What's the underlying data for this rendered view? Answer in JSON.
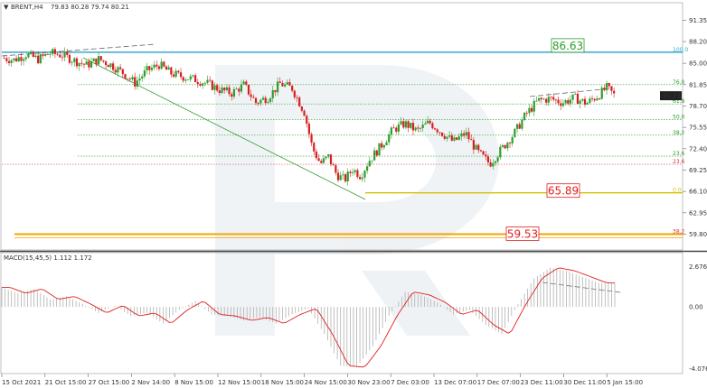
{
  "header": {
    "title": "BRENT,H4",
    "ohlc": "79.83 80.28 79.74 80.21"
  },
  "macd_header": "MACD(15,45,5) 1.112 1.172",
  "colors": {
    "bull": "#2e9e2e",
    "bear": "#d62020",
    "fib": "#2e9e2e",
    "resistance": "#36a9c9",
    "support_yellow": "#d4c200",
    "support_orange": "#f5a300",
    "label_red": "#e02020",
    "label_green": "#2e9e2e",
    "macd_signal": "#e02020",
    "macd_hist": "#b0b0b0"
  },
  "chart_data": {
    "type": "candlestick",
    "price_axis": {
      "ylim": [
        57.6,
        93.8
      ],
      "ticks": [
        "91.35",
        "88.20",
        "85.00",
        "81.85",
        "78.70",
        "75.55",
        "72.40",
        "69.25",
        "66.10",
        "62.95",
        "59.80"
      ]
    },
    "current_price": "80.21",
    "x_ticks": [
      "15 Oct 2021",
      "21 Oct 15:00",
      "27 Oct 15:00",
      "2 Nov 14:00",
      "8 Nov 15:00",
      "12 Nov 15:00",
      "18 Nov 15:00",
      "24 Nov 15:00",
      "30 Nov 23:00",
      "7 Dec 03:00",
      "13 Dec 07:00",
      "17 Dec 07:00",
      "23 Dec 11:00",
      "30 Dec 11:00",
      "5 Jan 15:00"
    ],
    "fib_levels": [
      {
        "label": "100.0",
        "price": 86.63
      },
      {
        "label": "76.0",
        "price": 81.85
      },
      {
        "label": "61.8",
        "price": 79.0
      },
      {
        "label": "50.0",
        "price": 76.7
      },
      {
        "label": "38.2",
        "price": 74.4
      },
      {
        "label": "23.6",
        "price": 71.3
      },
      {
        "label": "23.6",
        "price": 70.1
      },
      {
        "label": "0.0",
        "price": 65.89
      },
      {
        "label": "38.2",
        "price": 59.8
      }
    ],
    "key_levels": [
      {
        "label": "86.63",
        "price": 86.63
      },
      {
        "label": "65.89",
        "price": 65.89
      },
      {
        "label": "59.53",
        "price": 59.53
      }
    ],
    "price_path": [
      {
        "t": 0,
        "p": 85.8
      },
      {
        "t": 3,
        "p": 85.5
      },
      {
        "t": 6,
        "p": 86.3
      },
      {
        "t": 9,
        "p": 85.6
      },
      {
        "t": 12,
        "p": 86.5
      },
      {
        "t": 15,
        "p": 86.2
      },
      {
        "t": 18,
        "p": 85.4
      },
      {
        "t": 21,
        "p": 84.7
      },
      {
        "t": 24,
        "p": 85.6
      },
      {
        "t": 27,
        "p": 84.8
      },
      {
        "t": 30,
        "p": 83.6
      },
      {
        "t": 33,
        "p": 82.1
      },
      {
        "t": 36,
        "p": 83.9
      },
      {
        "t": 39,
        "p": 84.8
      },
      {
        "t": 42,
        "p": 83.5
      },
      {
        "t": 45,
        "p": 83.0
      },
      {
        "t": 48,
        "p": 82.6
      },
      {
        "t": 51,
        "p": 82.0
      },
      {
        "t": 54,
        "p": 81.1
      },
      {
        "t": 57,
        "p": 80.6
      },
      {
        "t": 60,
        "p": 81.8
      },
      {
        "t": 63,
        "p": 79.2
      },
      {
        "t": 66,
        "p": 80.0
      },
      {
        "t": 69,
        "p": 82.0
      },
      {
        "t": 72,
        "p": 81.3
      },
      {
        "t": 75,
        "p": 77.8
      },
      {
        "t": 77,
        "p": 72.5
      },
      {
        "t": 79,
        "p": 70.2
      },
      {
        "t": 81,
        "p": 71.2
      },
      {
        "t": 83,
        "p": 68.6
      },
      {
        "t": 85,
        "p": 67.8
      },
      {
        "t": 87,
        "p": 69.4
      },
      {
        "t": 89,
        "p": 68.4
      },
      {
        "t": 91,
        "p": 70.6
      },
      {
        "t": 94,
        "p": 72.8
      },
      {
        "t": 97,
        "p": 75.2
      },
      {
        "t": 100,
        "p": 76.1
      },
      {
        "t": 103,
        "p": 75.0
      },
      {
        "t": 106,
        "p": 76.3
      },
      {
        "t": 109,
        "p": 74.8
      },
      {
        "t": 112,
        "p": 73.4
      },
      {
        "t": 115,
        "p": 74.7
      },
      {
        "t": 118,
        "p": 71.9
      },
      {
        "t": 121,
        "p": 70.2
      },
      {
        "t": 124,
        "p": 72.4
      },
      {
        "t": 127,
        "p": 74.6
      },
      {
        "t": 130,
        "p": 77.5
      },
      {
        "t": 133,
        "p": 79.5
      },
      {
        "t": 136,
        "p": 79.8
      },
      {
        "t": 139,
        "p": 79.2
      },
      {
        "t": 142,
        "p": 79.9
      },
      {
        "t": 145,
        "p": 79.1
      },
      {
        "t": 148,
        "p": 80.3
      },
      {
        "t": 150,
        "p": 81.4
      },
      {
        "t": 152,
        "p": 80.2
      }
    ],
    "macd_axis": {
      "ticks": [
        "2.676",
        "0.00",
        "-4.076"
      ],
      "ylim": [
        -4.3,
        3.0
      ]
    },
    "macd_path": [
      {
        "t": 0,
        "p": 1.3
      },
      {
        "t": 4,
        "p": 0.9
      },
      {
        "t": 8,
        "p": 1.2
      },
      {
        "t": 12,
        "p": 0.5
      },
      {
        "t": 16,
        "p": 0.7
      },
      {
        "t": 20,
        "p": 0.2
      },
      {
        "t": 24,
        "p": -0.4
      },
      {
        "t": 28,
        "p": 0.1
      },
      {
        "t": 32,
        "p": -0.6
      },
      {
        "t": 36,
        "p": -0.4
      },
      {
        "t": 40,
        "p": -1.1
      },
      {
        "t": 44,
        "p": -0.2
      },
      {
        "t": 48,
        "p": 0.4
      },
      {
        "t": 52,
        "p": -0.5
      },
      {
        "t": 56,
        "p": -0.6
      },
      {
        "t": 60,
        "p": -0.9
      },
      {
        "t": 64,
        "p": -0.7
      },
      {
        "t": 68,
        "p": -1.1
      },
      {
        "t": 72,
        "p": -0.5
      },
      {
        "t": 76,
        "p": -0.1
      },
      {
        "t": 80,
        "p": -1.8
      },
      {
        "t": 84,
        "p": -3.9
      },
      {
        "t": 88,
        "p": -4.0
      },
      {
        "t": 92,
        "p": -2.6
      },
      {
        "t": 96,
        "p": -0.6
      },
      {
        "t": 100,
        "p": 1.0
      },
      {
        "t": 104,
        "p": 0.8
      },
      {
        "t": 108,
        "p": 0.3
      },
      {
        "t": 112,
        "p": -0.5
      },
      {
        "t": 116,
        "p": -0.2
      },
      {
        "t": 120,
        "p": -1.2
      },
      {
        "t": 124,
        "p": -1.8
      },
      {
        "t": 128,
        "p": 0.2
      },
      {
        "t": 132,
        "p": 1.9
      },
      {
        "t": 136,
        "p": 2.6
      },
      {
        "t": 140,
        "p": 2.4
      },
      {
        "t": 144,
        "p": 2.0
      },
      {
        "t": 148,
        "p": 1.6
      },
      {
        "t": 152,
        "p": 1.6
      }
    ]
  }
}
